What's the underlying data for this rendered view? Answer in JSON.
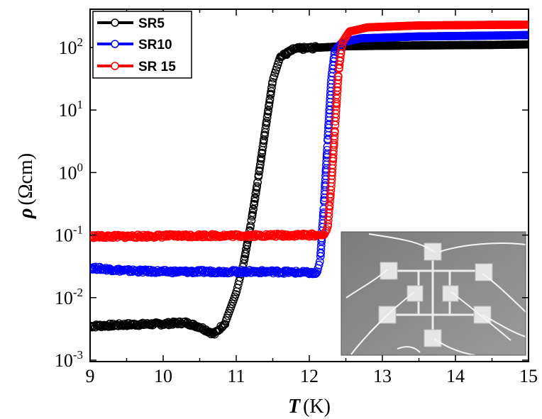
{
  "chart_data": {
    "type": "scatter",
    "xlabel": {
      "symbol": "T",
      "unit": "(K)"
    },
    "ylabel": {
      "symbol": "ρ",
      "unit": "(Ωcm)"
    },
    "xlim": [
      9,
      15
    ],
    "ylim_log10": [
      -3,
      2.6
    ],
    "y_scale": "log",
    "x_ticks": [
      "9",
      "10",
      "11",
      "12",
      "13",
      "14",
      "15"
    ],
    "y_ticks": [
      {
        "base": "10",
        "exp": "2"
      },
      {
        "base": "10",
        "exp": "1"
      },
      {
        "base": "10",
        "exp": "0"
      },
      {
        "base": "10",
        "exp": "-1"
      },
      {
        "base": "10",
        "exp": "-2"
      },
      {
        "base": "10",
        "exp": "-3"
      }
    ],
    "legend_position": "top-left",
    "inset": "photograph of sample with contact pads and wires (bottom-right)",
    "series": [
      {
        "name": "SR5",
        "color": "#000000",
        "points": [
          [
            9.0,
            0.0035
          ],
          [
            9.5,
            0.0037
          ],
          [
            10.0,
            0.0038
          ],
          [
            10.3,
            0.004
          ],
          [
            10.5,
            0.0034
          ],
          [
            10.7,
            0.0026
          ],
          [
            10.85,
            0.004
          ],
          [
            11.0,
            0.012
          ],
          [
            11.1,
            0.035
          ],
          [
            11.2,
            0.15
          ],
          [
            11.3,
            0.8
          ],
          [
            11.4,
            5.0
          ],
          [
            11.5,
            30
          ],
          [
            11.6,
            70
          ],
          [
            11.8,
            95
          ],
          [
            12.5,
            105
          ],
          [
            13.5,
            108
          ],
          [
            14.5,
            110
          ],
          [
            15.0,
            112
          ]
        ]
      },
      {
        "name": "SR10",
        "color": "#0000ff",
        "points": [
          [
            9.0,
            0.03
          ],
          [
            9.5,
            0.027
          ],
          [
            10.0,
            0.026
          ],
          [
            10.5,
            0.026
          ],
          [
            11.0,
            0.026
          ],
          [
            11.5,
            0.026
          ],
          [
            12.0,
            0.025
          ],
          [
            12.1,
            0.024
          ],
          [
            12.15,
            0.04
          ],
          [
            12.2,
            0.3
          ],
          [
            12.25,
            3.0
          ],
          [
            12.3,
            30
          ],
          [
            12.35,
            90
          ],
          [
            12.45,
            120
          ],
          [
            12.7,
            140
          ],
          [
            13.5,
            150
          ],
          [
            14.5,
            155
          ],
          [
            15.0,
            158
          ]
        ]
      },
      {
        "name": "SR 15",
        "color": "#ff0000",
        "points": [
          [
            9.0,
            0.095
          ],
          [
            9.5,
            0.095
          ],
          [
            10.0,
            0.097
          ],
          [
            10.5,
            0.098
          ],
          [
            11.0,
            0.098
          ],
          [
            11.5,
            0.099
          ],
          [
            12.0,
            0.1
          ],
          [
            12.2,
            0.1
          ],
          [
            12.25,
            0.13
          ],
          [
            12.3,
            0.6
          ],
          [
            12.35,
            5.0
          ],
          [
            12.4,
            40
          ],
          [
            12.45,
            120
          ],
          [
            12.55,
            180
          ],
          [
            12.8,
            210
          ],
          [
            13.5,
            225
          ],
          [
            14.5,
            230
          ],
          [
            15.0,
            232
          ]
        ]
      }
    ]
  }
}
